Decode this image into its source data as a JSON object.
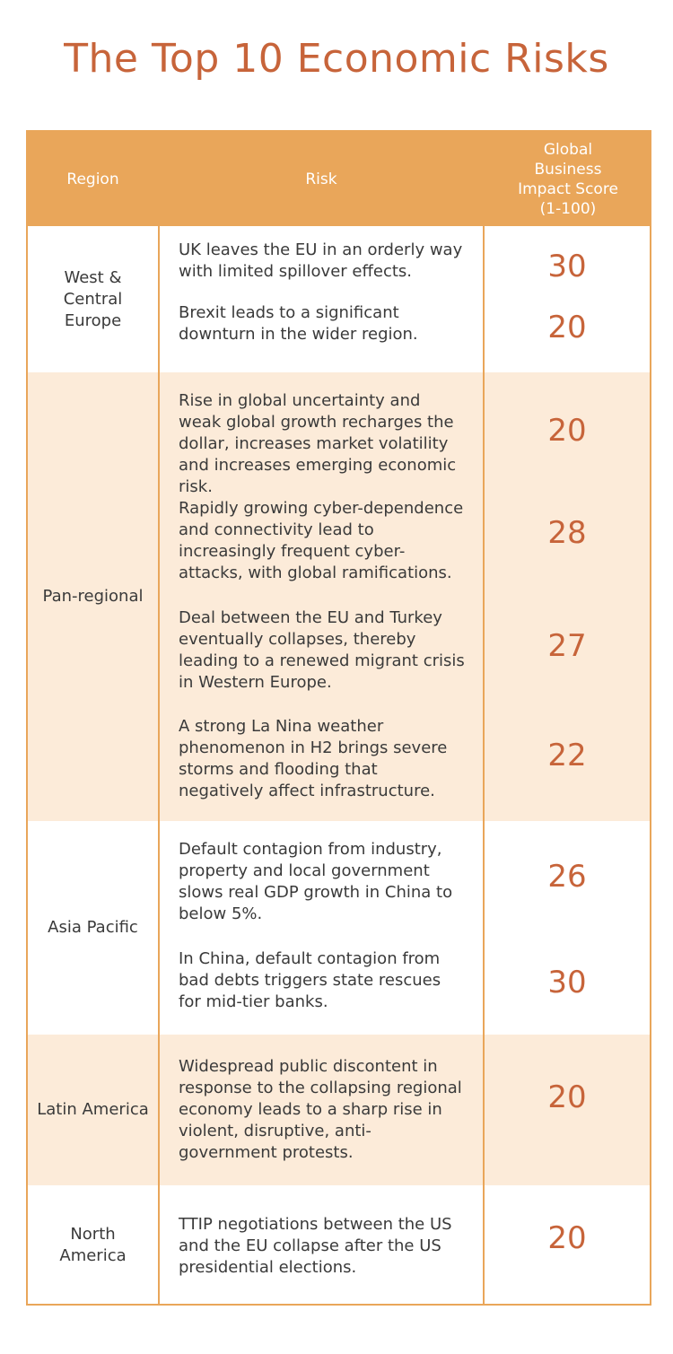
{
  "title": "The Top 10 Economic Risks",
  "headers": {
    "region": "Region",
    "risk": "Risk",
    "score": "Global Business Impact Score (1-100)"
  },
  "rows": [
    {
      "region": "West & Central Europe",
      "risks": [
        {
          "text": "UK leaves the EU in an orderly way with limited spillover effects.",
          "score": "30"
        },
        {
          "text": "Brexit leads to a significant downturn in the wider region.",
          "score": "20"
        }
      ]
    },
    {
      "region": "Pan-regional",
      "risks": [
        {
          "text": "Rise in global uncertainty and weak global growth recharges the dollar, increases market volatility and increases emerging economic risk.",
          "score": "20"
        },
        {
          "text": "Rapidly growing cyber-dependence and connectivity lead to increasingly frequent cyber-attacks, with global ramifications.",
          "score": "28"
        },
        {
          "text": "Deal between the EU and Turkey eventually collapses, thereby leading to a renewed migrant crisis in Western Europe.",
          "score": "27"
        },
        {
          "text": "A strong La Nina weather phenomenon in H2 brings severe storms and flooding that negatively affect infrastructure.",
          "score": "22"
        }
      ]
    },
    {
      "region": "Asia Pacific",
      "risks": [
        {
          "text": "Default contagion from industry, property and local government slows real GDP growth in China to below 5%.",
          "score": "26"
        },
        {
          "text": "In China, default contagion from bad debts triggers state rescues for mid-tier banks.",
          "score": "30"
        }
      ]
    },
    {
      "region": "Latin America",
      "risks": [
        {
          "text": "Widespread public discontent in response to the collapsing regional economy leads to a sharp rise in violent, disruptive, anti-government protests.",
          "score": "20"
        }
      ]
    },
    {
      "region": "North America",
      "risks": [
        {
          "text": "TTIP negotiations between the US and the EU collapse after the US presidential elections.",
          "score": "20"
        }
      ]
    }
  ]
}
